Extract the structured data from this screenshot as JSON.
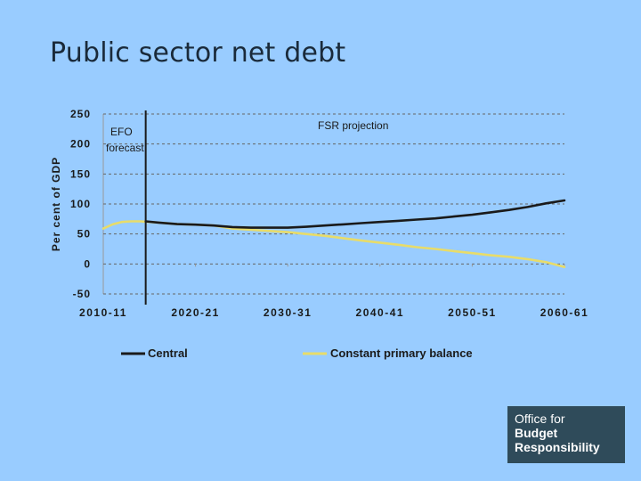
{
  "slide": {
    "title": "Public sector net debt"
  },
  "logo": {
    "line1": "Office for",
    "line2": "Budget",
    "line3": "Responsibility"
  },
  "colors": {
    "central": "#1a1a1a",
    "cpb": "#e8dc6a",
    "grid": "#666666",
    "axis": "#999999",
    "background": "#99ccff"
  },
  "chart_data": {
    "type": "line",
    "title": "",
    "ylabel": "Per cent of GDP",
    "xlabel": "",
    "ylim": [
      -50,
      250
    ],
    "yticks": [
      250,
      200,
      150,
      100,
      50,
      0,
      -50
    ],
    "xlim": [
      2010,
      2060
    ],
    "xticks": [
      "2010-11",
      "2020-21",
      "2030-31",
      "2040-41",
      "2050-51",
      "2060-61"
    ],
    "xtick_values": [
      2010,
      2020,
      2030,
      2040,
      2050,
      2060
    ],
    "grid": true,
    "legend": "bottom",
    "annotations": {
      "efo_label": [
        "EFO",
        "forecast"
      ],
      "fsr_label": "FSR projection",
      "divider_x": 2014.6
    },
    "series": [
      {
        "name": "Central",
        "color": "#1a1a1a",
        "x": [
          2014.6,
          2016,
          2018,
          2020,
          2022,
          2024,
          2026,
          2028,
          2030,
          2032,
          2034,
          2036,
          2038,
          2040,
          2042,
          2044,
          2046,
          2048,
          2050,
          2052,
          2054,
          2056,
          2058,
          2060
        ],
        "y": [
          71,
          69,
          66.5,
          65.5,
          64,
          61.5,
          60.5,
          60.5,
          60.5,
          62,
          64,
          66,
          68,
          70,
          72,
          74,
          76,
          79,
          82,
          86,
          90,
          95,
          101,
          106
        ]
      },
      {
        "name": "Constant primary balance",
        "color": "#e8dc6a",
        "x": [
          2010,
          2011,
          2012,
          2013,
          2014,
          2015,
          2016,
          2018,
          2020,
          2022,
          2024,
          2026,
          2028,
          2030,
          2032,
          2034,
          2036,
          2038,
          2040,
          2042,
          2044,
          2046,
          2048,
          2050,
          2052,
          2054,
          2056,
          2058,
          2060
        ],
        "y": [
          59,
          66,
          70,
          71,
          71,
          70,
          69,
          66.5,
          65.5,
          64,
          59,
          57,
          55,
          53,
          50,
          47,
          43,
          39,
          35.5,
          32,
          28,
          25,
          21.5,
          18,
          14.5,
          12,
          8,
          3,
          -5
        ]
      }
    ]
  }
}
